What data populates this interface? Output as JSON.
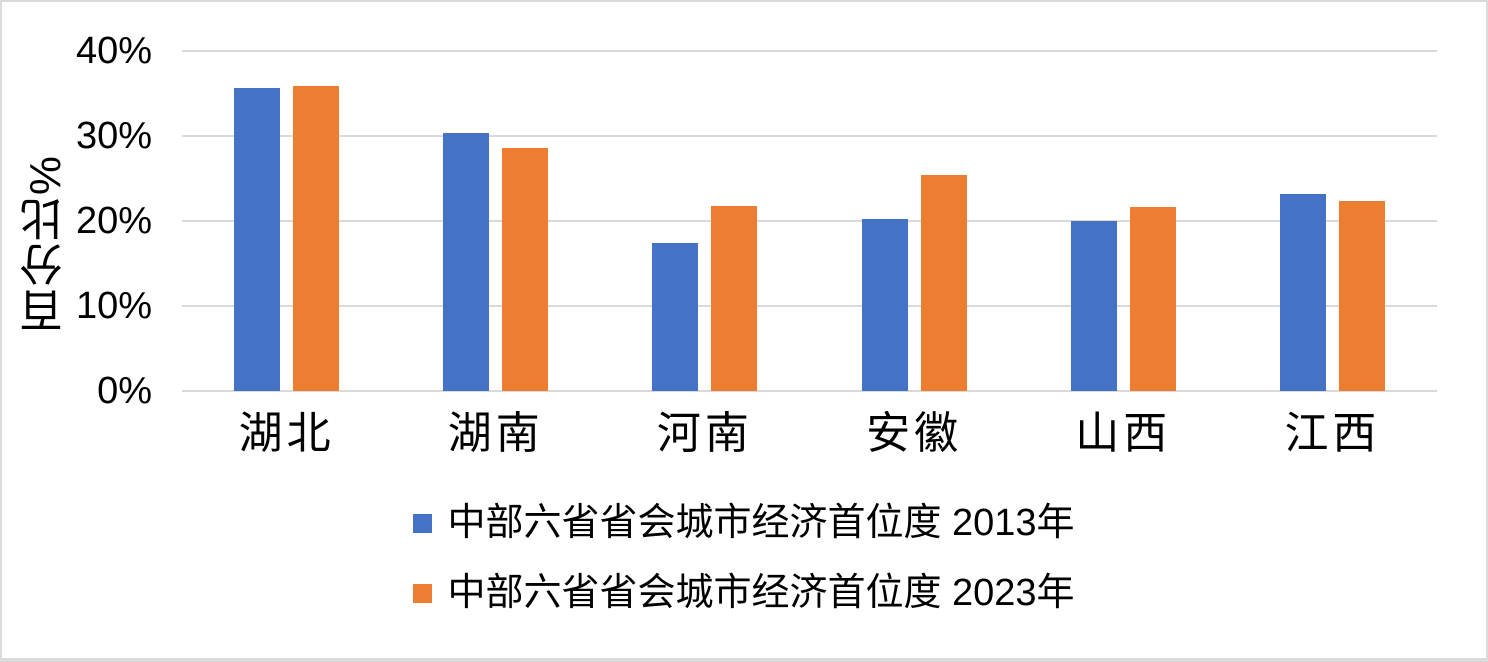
{
  "chart_data": {
    "type": "bar",
    "title": "",
    "xlabel": "",
    "ylabel": "百分比%",
    "categories": [
      "湖北",
      "湖南",
      "河南",
      "安徽",
      "山西",
      "江西"
    ],
    "series": [
      {
        "name": "中部六省省会城市经济首位度 2013年",
        "color": "#4472C4",
        "values": [
          35.7,
          30.4,
          17.4,
          20.2,
          20.0,
          23.2
        ]
      },
      {
        "name": "中部六省省会城市经济首位度 2023年",
        "color": "#ED7D31",
        "values": [
          35.9,
          28.6,
          21.8,
          25.4,
          21.6,
          22.3
        ]
      }
    ],
    "ylim": [
      0,
      40
    ],
    "yticks": [
      0,
      10,
      20,
      30,
      40
    ],
    "ytick_format": "percent",
    "grid": true,
    "gridline_color": "#D9D9D9",
    "legend_position": "bottom",
    "text_color": "#000000",
    "background": "#FFFFFF",
    "frame_border_color": "#DBDBDB"
  }
}
